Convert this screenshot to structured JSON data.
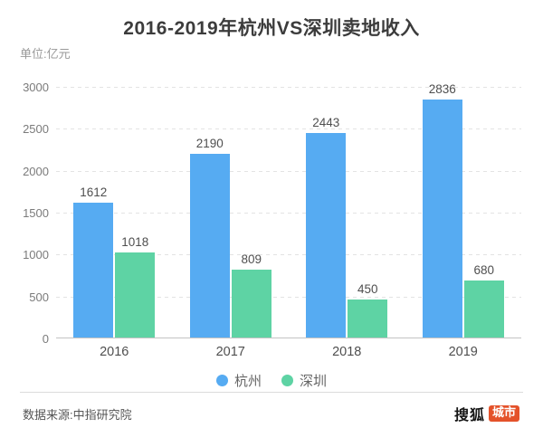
{
  "chart_data": {
    "type": "bar",
    "title": "2016-2019年杭州VS深圳卖地收入",
    "unit_label": "单位:亿元",
    "categories": [
      "2016",
      "2017",
      "2018",
      "2019"
    ],
    "series": [
      {
        "name": "杭州",
        "color": "#56abf2",
        "values": [
          1612,
          2190,
          2443,
          2836
        ]
      },
      {
        "name": "深圳",
        "color": "#5ed3a4",
        "values": [
          1018,
          809,
          450,
          680
        ]
      }
    ],
    "ylim": [
      0,
      3000
    ],
    "ytick_step": 500,
    "grid": "horizontal-dashed",
    "legend_position": "bottom",
    "value_labels": true
  },
  "footer": {
    "source": "数据来源:中指研究院",
    "brand": {
      "name": "搜狐",
      "badge": "城市",
      "badge_color": "#e4522a"
    }
  }
}
